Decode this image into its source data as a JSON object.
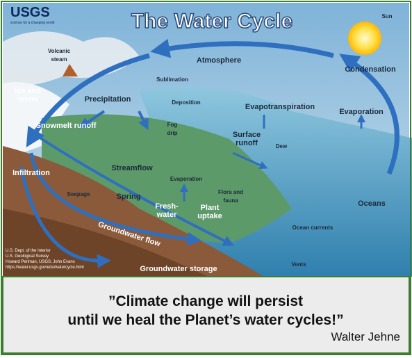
{
  "header": {
    "logo": "USGS",
    "logo_tagline": "science for a changing world",
    "title": "The Water Cycle"
  },
  "labels": [
    [
      "Sun"
    ],
    [
      "Volcanic",
      "steam"
    ],
    [
      "Atmosphere"
    ],
    [
      "Condensation"
    ],
    [
      "Ice and",
      "snow"
    ],
    [
      "Precipitation"
    ],
    [
      "Sublimation"
    ],
    [
      "Deposition"
    ],
    [
      "Evapotranspiration"
    ],
    [
      "Evaporation"
    ],
    [
      "Fog",
      "drip"
    ],
    [
      "Surface",
      "runoff"
    ],
    [
      "Dew"
    ],
    [
      "Snowmelt runoff"
    ],
    [
      "Streamflow"
    ],
    [
      "Infiltration"
    ],
    [
      "Seepage"
    ],
    [
      "Evaporation"
    ],
    [
      "Spring"
    ],
    [
      "Flora and",
      "fauna"
    ],
    [
      "Fresh-",
      "water"
    ],
    [
      "Plant",
      "uptake"
    ],
    [
      "Oceans"
    ],
    [
      "Ocean currents"
    ],
    [
      "Groundwater flow"
    ],
    [
      "Groundwater storage"
    ],
    [
      "Vents"
    ]
  ],
  "credits": [
    "U.S. Dept. of the Interior",
    "U.S. Geological Survey",
    "Howard Perlman, USGS; John Evans",
    "https://water.usgs.gov/edu/watercycle.html"
  ],
  "quote": {
    "lines": [
      "”Climate change will persist",
      "until we heal the Planet’s water cycles!”"
    ],
    "author": "Walter Jehne"
  }
}
